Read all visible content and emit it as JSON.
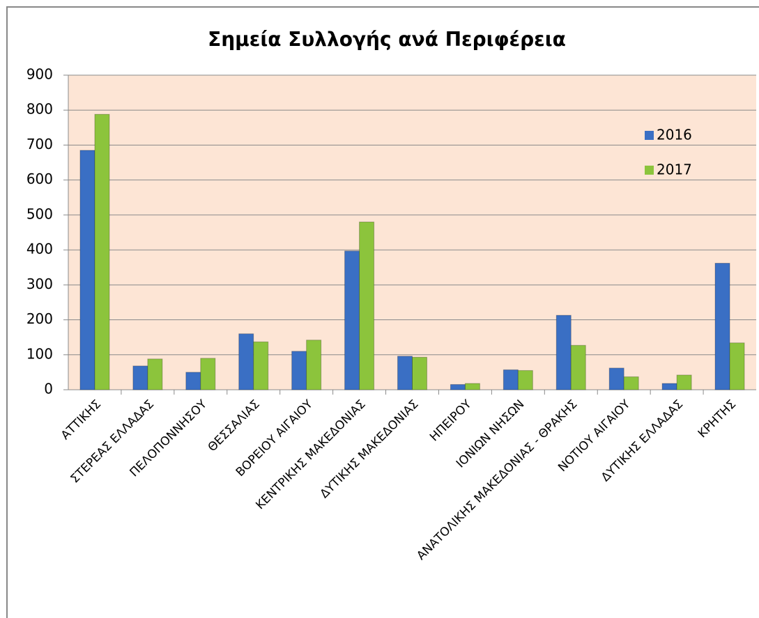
{
  "chart_data": {
    "type": "bar",
    "title": "Σημεία Συλλογής ανά Περιφέρεια",
    "categories": [
      "ΑΤΤΙΚΗΣ",
      "ΣΤΕΡΕΑΣ ΕΛΛΑΔΑΣ",
      "ΠΕΛΟΠΟΝΝΗΣΟΥ",
      "ΘΕΣΣΑΛΙΑΣ",
      "ΒΟΡΕΙΟΥ ΑΙΓΑΙΟΥ",
      "ΚΕΝΤΡΙΚΗΣ ΜΑΚΕΔΟΝΙΑΣ",
      "ΔΥΤΙΚΗΣ ΜΑΚΕΔΟΝΙΑΣ",
      "ΗΠΕΙΡΟΥ",
      "ΙΟΝΙΩΝ ΝΗΣΩΝ",
      "ΑΝΑΤΟΛΙΚΗΣ ΜΑΚΕΔΟΝΙΑΣ - ΘΡΑΚΗΣ",
      "ΝΟΤΙΟΥ ΑΙΓΑΙΟΥ",
      "ΔΥΤΙΚΗΣ ΕΛΛΑΔΑΣ",
      "ΚΡΗΤΗΣ"
    ],
    "series": [
      {
        "name": "2016",
        "color": "#3a6fc4",
        "values": [
          685,
          68,
          50,
          160,
          110,
          397,
          96,
          15,
          57,
          213,
          62,
          18,
          362
        ]
      },
      {
        "name": "2017",
        "color": "#8cc43c",
        "values": [
          788,
          88,
          90,
          137,
          142,
          480,
          93,
          18,
          55,
          127,
          37,
          42,
          134
        ]
      }
    ],
    "ylim": [
      0,
      900
    ],
    "yticks": [
      0,
      100,
      200,
      300,
      400,
      500,
      600,
      700,
      800,
      900
    ],
    "grid": true
  }
}
